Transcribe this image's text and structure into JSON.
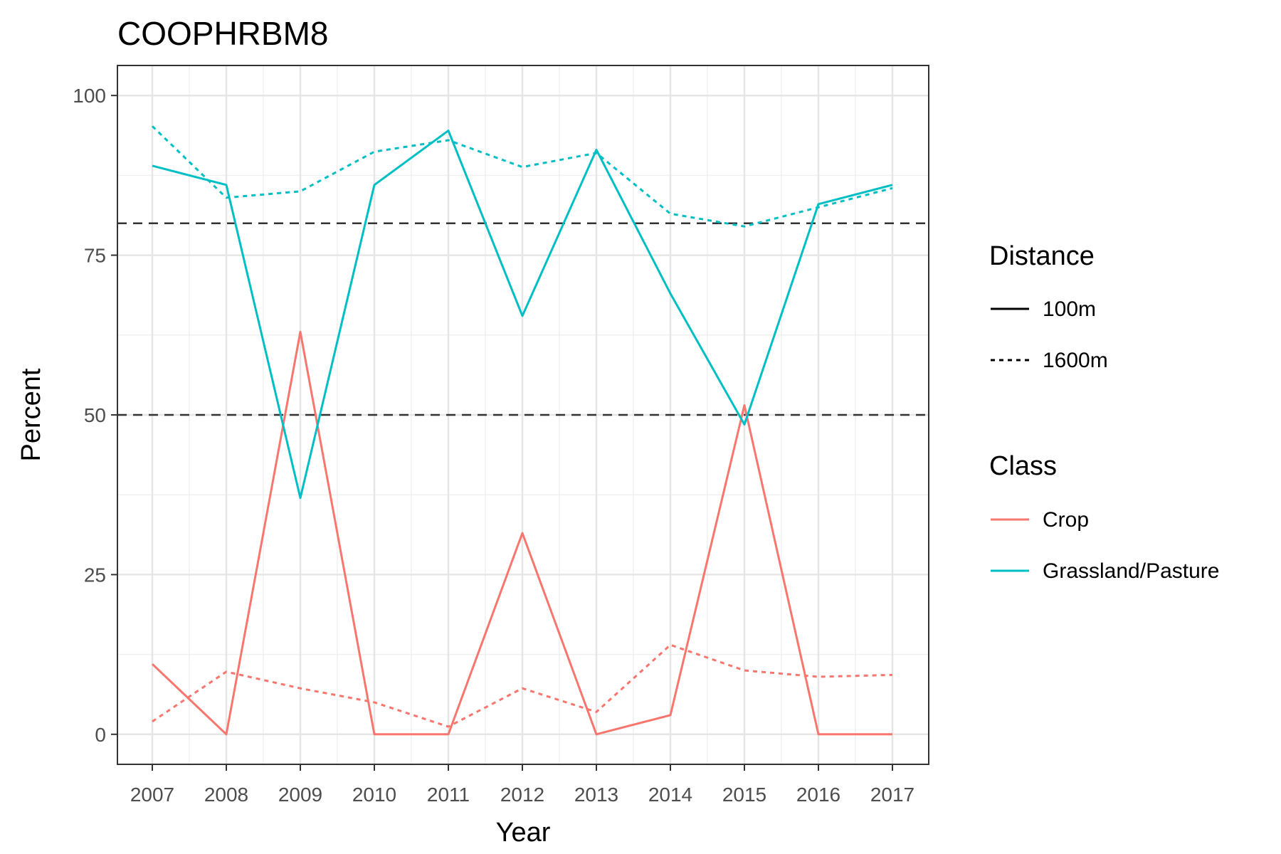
{
  "chart_data": {
    "type": "line",
    "title": "COOPHRBM8",
    "xlabel": "Year",
    "ylabel": "Percent",
    "x": [
      2007,
      2008,
      2009,
      2010,
      2011,
      2012,
      2013,
      2014,
      2015,
      2016,
      2017
    ],
    "x_ticks": [
      "2007",
      "2008",
      "2009",
      "2010",
      "2011",
      "2012",
      "2013",
      "2014",
      "2015",
      "2016",
      "2017"
    ],
    "ylim": [
      -4.7,
      104.7
    ],
    "y_ticks": [
      0,
      25,
      50,
      75,
      100
    ],
    "y_tick_labels": [
      "0",
      "25",
      "50",
      "75",
      "100"
    ],
    "grid": true,
    "legend_position": "right",
    "reference_lines": [
      {
        "y": 80,
        "style": "dashed",
        "color": "#333333"
      },
      {
        "y": 50,
        "style": "dashed",
        "color": "#333333"
      }
    ],
    "series": [
      {
        "class": "Crop",
        "distance": "100m",
        "color": "#f8766d",
        "linetype": "solid",
        "values": [
          11,
          0,
          63,
          0,
          0,
          31.5,
          0,
          3,
          51.5,
          0,
          0
        ]
      },
      {
        "class": "Crop",
        "distance": "1600m",
        "color": "#f8766d",
        "linetype": "dashed",
        "values": [
          2,
          9.8,
          7.2,
          5,
          1.2,
          7.2,
          3.5,
          14,
          10,
          9,
          9.3
        ]
      },
      {
        "class": "Grassland/Pasture",
        "distance": "100m",
        "color": "#00bfc4",
        "linetype": "solid",
        "values": [
          89,
          86,
          37,
          86,
          94.5,
          65.5,
          91.5,
          69,
          48.5,
          83,
          86
        ]
      },
      {
        "class": "Grassland/Pasture",
        "distance": "1600m",
        "color": "#00bfc4",
        "linetype": "dashed",
        "values": [
          95.2,
          84,
          85,
          91.2,
          93,
          88.8,
          91,
          81.5,
          79.5,
          82.5,
          85.5
        ]
      }
    ],
    "legends": [
      {
        "title": "Distance",
        "entries": [
          {
            "label": "100m",
            "color": "#000000",
            "linetype": "solid"
          },
          {
            "label": "1600m",
            "color": "#000000",
            "linetype": "dashed"
          }
        ]
      },
      {
        "title": "Class",
        "entries": [
          {
            "label": "Crop",
            "color": "#f8766d",
            "linetype": "solid"
          },
          {
            "label": "Grassland/Pasture",
            "color": "#00bfc4",
            "linetype": "solid"
          }
        ]
      }
    ]
  }
}
